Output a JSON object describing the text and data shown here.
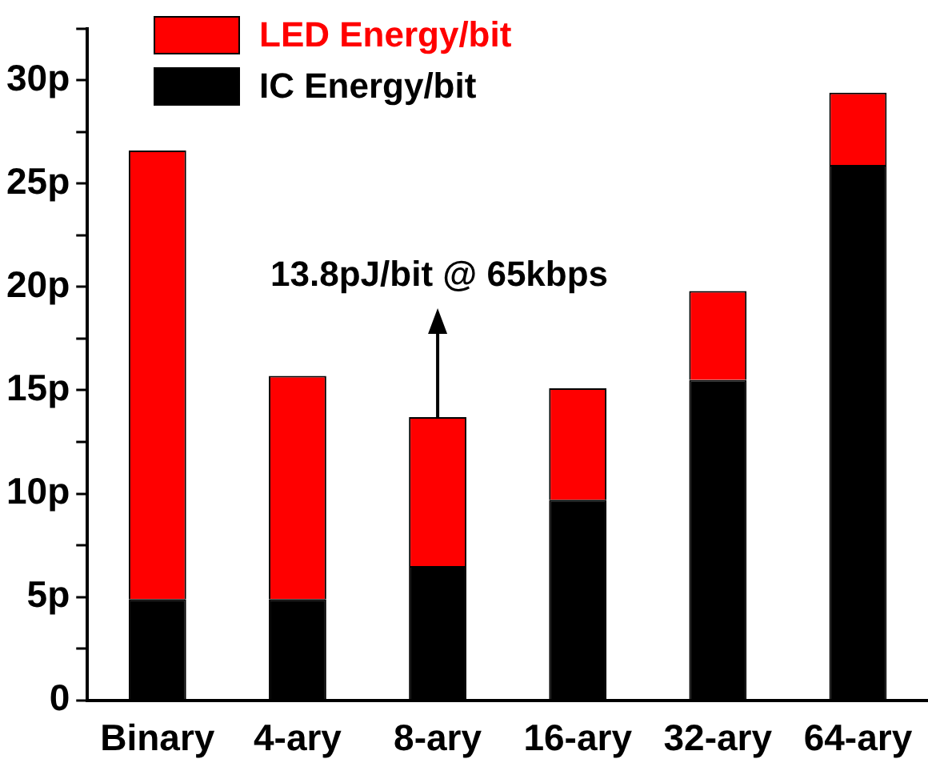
{
  "chart_data": {
    "type": "bar",
    "stacked": true,
    "categories": [
      "Binary",
      "4-ary",
      "8-ary",
      "16-ary",
      "32-ary",
      "64-ary"
    ],
    "series": [
      {
        "name": "IC Energy/bit",
        "color": "#000000",
        "values": [
          4.9,
          4.9,
          6.5,
          9.7,
          15.5,
          25.9
        ]
      },
      {
        "name": "LED Energy/bit",
        "color": "#ff0000",
        "values": [
          21.7,
          10.8,
          7.2,
          5.4,
          4.3,
          3.5
        ]
      }
    ],
    "ylim": [
      0,
      32.5
    ],
    "yticks": [
      0,
      {
        "value": 2.5,
        "label": null
      },
      {
        "value": 5,
        "label": "5p"
      },
      {
        "value": 7.5,
        "label": null
      },
      {
        "value": 10,
        "label": "10p"
      },
      {
        "value": 12.5,
        "label": null
      },
      {
        "value": 15,
        "label": "15p"
      },
      {
        "value": 17.5,
        "label": null
      },
      {
        "value": 20,
        "label": "20p"
      },
      {
        "value": 22.5,
        "label": null
      },
      {
        "value": 25,
        "label": "25p"
      },
      {
        "value": 27.5,
        "label": null
      },
      {
        "value": 30,
        "label": "30p"
      },
      {
        "value": 32.5,
        "label": null
      }
    ],
    "annotations": [
      {
        "text": "13.8pJ/bit @ 65kbps",
        "x": "8-ary",
        "y": 13.7
      }
    ],
    "legend": "top",
    "grid": false
  }
}
